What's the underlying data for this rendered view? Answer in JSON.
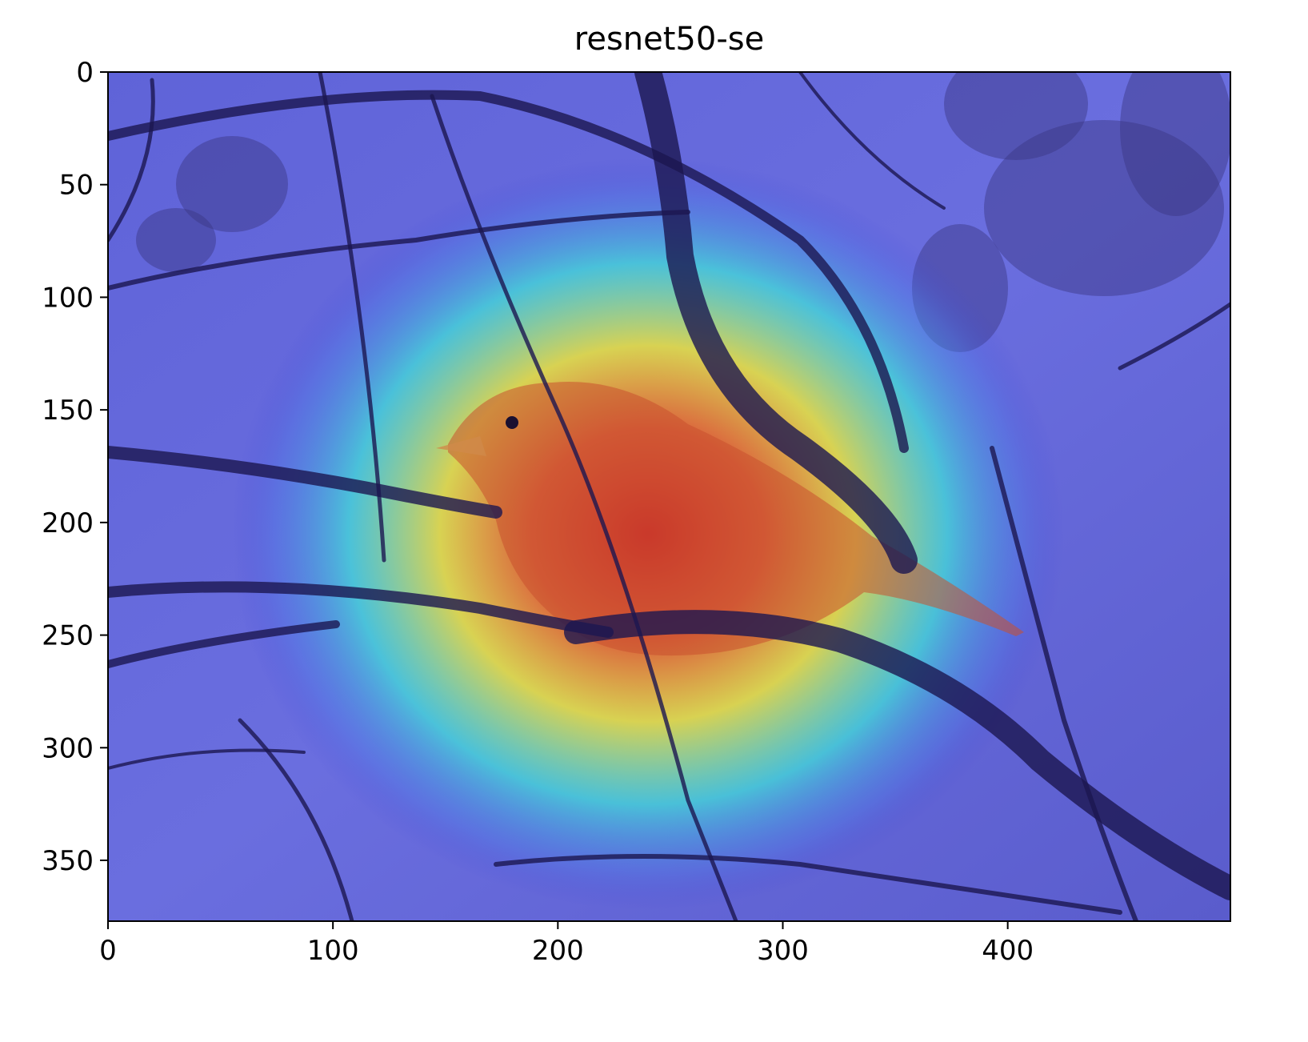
{
  "chart_data": {
    "type": "heatmap",
    "title": "resnet50-se",
    "image_description_note": "",
    "xlim": [
      0,
      499
    ],
    "ylim": [
      0,
      377
    ],
    "y_inverted": true,
    "x_ticks": [
      0,
      100,
      200,
      300,
      400
    ],
    "y_ticks": [
      0,
      50,
      100,
      150,
      200,
      250,
      300,
      350
    ],
    "grid": false,
    "colormap": "jet",
    "heat_peak": {
      "x": 240,
      "y": 205
    },
    "colors": {
      "background_low": "#3d3fd4",
      "mid": "#38e0e0",
      "high": "#f0e83a",
      "peak": "#d8242a",
      "branch": "#1c1750"
    }
  }
}
